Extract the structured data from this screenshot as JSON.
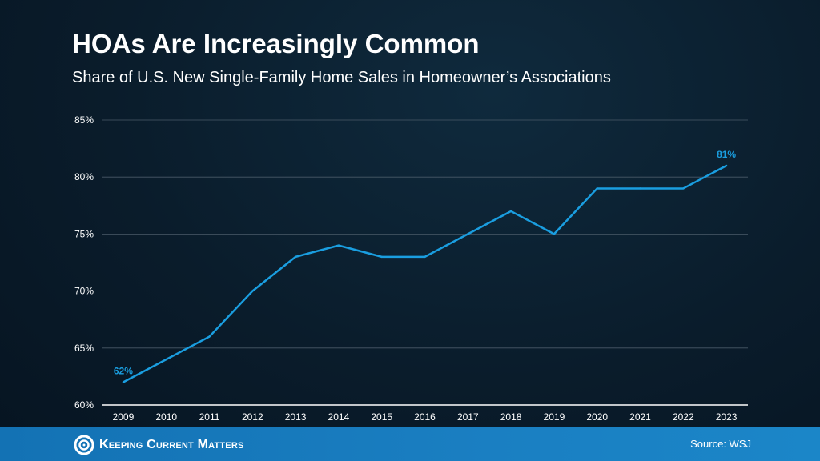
{
  "chart_data": {
    "type": "line",
    "title": "HOAs Are Increasingly Common",
    "subtitle": "Share of U.S. New Single-Family Home Sales in Homeowner’s Associations",
    "categories": [
      "2009",
      "2010",
      "2011",
      "2012",
      "2013",
      "2014",
      "2015",
      "2016",
      "2017",
      "2018",
      "2019",
      "2020",
      "2021",
      "2022",
      "2023"
    ],
    "values": [
      62,
      64,
      66,
      70,
      73,
      74,
      73,
      73,
      75,
      77,
      75,
      79,
      79,
      79,
      81
    ],
    "data_labels": [
      {
        "category": "2009",
        "text": "62%"
      },
      {
        "category": "2023",
        "text": "81%"
      }
    ],
    "ylim": [
      60,
      85
    ],
    "yticks": [
      60,
      65,
      70,
      75,
      80,
      85
    ],
    "ytick_labels": [
      "60%",
      "65%",
      "70%",
      "75%",
      "80%",
      "85%"
    ],
    "xlabel": "",
    "ylabel": "",
    "grid": true,
    "line_color": "#1a9ee0"
  },
  "footer": {
    "logo_text": "Keeping Current Matters",
    "source": "Source: WSJ"
  }
}
